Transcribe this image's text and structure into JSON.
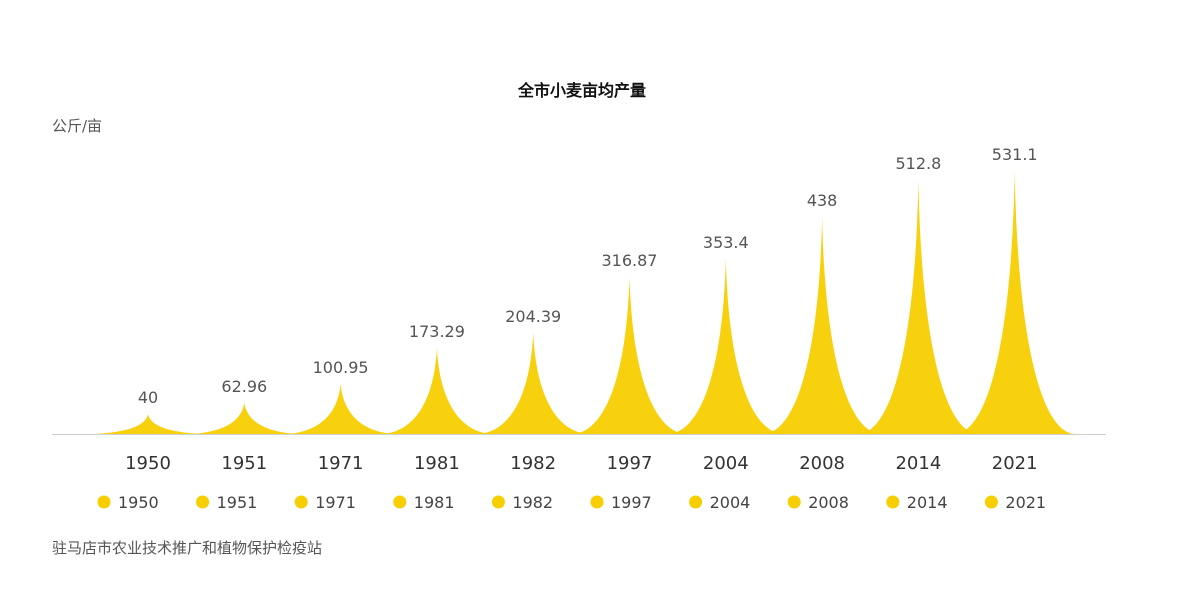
{
  "chart_data": {
    "type": "area",
    "title": "全市小麦亩均产量",
    "ylabel": "公斤/亩",
    "xlabel": "",
    "categories": [
      "1950",
      "1951",
      "1971",
      "1981",
      "1982",
      "1997",
      "2004",
      "2008",
      "2014",
      "2021"
    ],
    "values": [
      40,
      62.96,
      100.95,
      173.29,
      204.39,
      316.87,
      353.4,
      438,
      512.8,
      531.1
    ],
    "value_labels": [
      "40",
      "62.96",
      "100.95",
      "173.29",
      "204.39",
      "316.87",
      "353.4",
      "438",
      "512.8",
      "531.1"
    ],
    "legend": {
      "position": "bottom",
      "entries": [
        "1950",
        "1951",
        "1971",
        "1981",
        "1982",
        "1997",
        "2004",
        "2008",
        "2014",
        "2021"
      ]
    },
    "source": "驻马店市农业技术推广和植物保护检疫站",
    "colors": {
      "fill": "#F7CF00",
      "axis": "#cfcfcf",
      "text": "#333333",
      "label": "#555555"
    }
  }
}
